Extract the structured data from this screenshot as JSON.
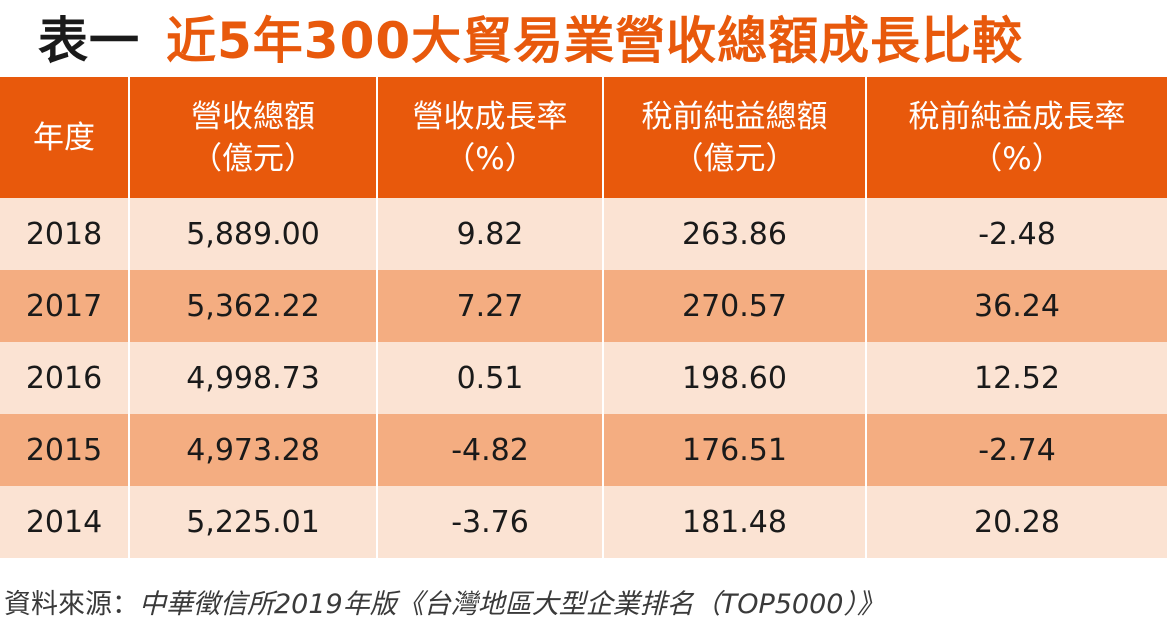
{
  "title": {
    "prefix": "表一",
    "main": "近5年300大貿易業營收總額成長比較"
  },
  "table": {
    "headers": [
      [
        "年度"
      ],
      [
        "營收總額",
        "（億元）"
      ],
      [
        "營收成長率",
        "（%）"
      ],
      [
        "稅前純益總額",
        "（億元）"
      ],
      [
        "稅前純益成長率",
        "（%）"
      ]
    ],
    "rows": [
      [
        "2018",
        "5,889.00",
        "9.82",
        "263.86",
        "-2.48"
      ],
      [
        "2017",
        "5,362.22",
        "7.27",
        "270.57",
        "36.24"
      ],
      [
        "2016",
        "4,998.73",
        "0.51",
        "198.60",
        "12.52"
      ],
      [
        "2015",
        "4,973.28",
        "-4.82",
        "176.51",
        "-2.74"
      ],
      [
        "2014",
        "5,225.01",
        "-3.76",
        "181.48",
        "20.28"
      ]
    ]
  },
  "source": {
    "label": "資料來源：",
    "reference": "中華徵信所2019年版《台灣地區大型企業排名（TOP5000）》"
  },
  "colors": {
    "accent": "#e8590c",
    "row_light": "#fbe3d3",
    "row_dark": "#f4ad81",
    "header_text": "#ffffff"
  },
  "chart_data": {
    "type": "table",
    "title": "近5年300大貿易業營收總額成長比較",
    "columns": [
      "年度",
      "營收總額（億元）",
      "營收成長率（%）",
      "稅前純益總額（億元）",
      "稅前純益成長率（%）"
    ],
    "rows": [
      [
        2018,
        5889.0,
        9.82,
        263.86,
        -2.48
      ],
      [
        2017,
        5362.22,
        7.27,
        270.57,
        36.24
      ],
      [
        2016,
        4998.73,
        0.51,
        198.6,
        12.52
      ],
      [
        2015,
        4973.28,
        -4.82,
        176.51,
        -2.74
      ],
      [
        2014,
        5225.01,
        -3.76,
        181.48,
        20.28
      ]
    ]
  }
}
